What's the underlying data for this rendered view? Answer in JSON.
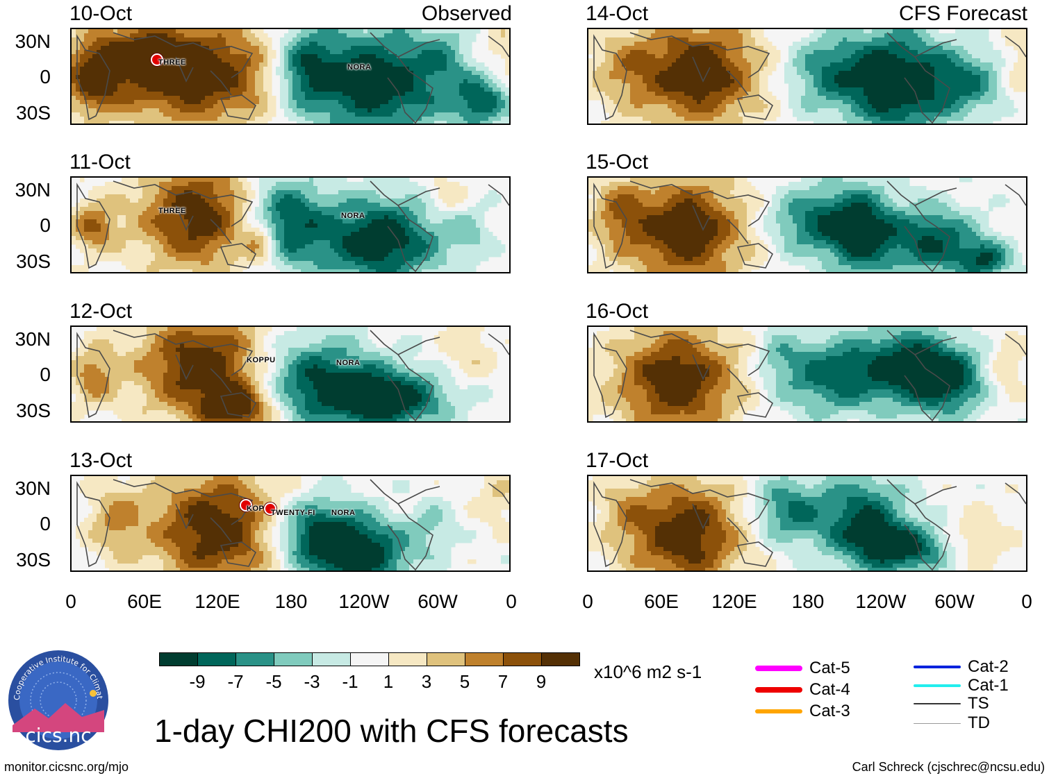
{
  "title": "1-day CHI200 with CFS forecasts",
  "observed_label": "Observed",
  "forecast_label": "CFS Forecast",
  "panels": [
    {
      "date": "10-Oct",
      "storms": [
        {
          "name": "THREE",
          "marker": true
        },
        {
          "name": "NORA",
          "marker": false
        }
      ]
    },
    {
      "date": "11-Oct",
      "storms": [
        {
          "name": "THREE",
          "marker": false
        },
        {
          "name": "NORA",
          "marker": false
        }
      ]
    },
    {
      "date": "12-Oct",
      "storms": [
        {
          "name": "KOPPU",
          "marker": false
        },
        {
          "name": "NORA",
          "marker": false
        }
      ]
    },
    {
      "date": "13-Oct",
      "storms": [
        {
          "name": "KOPPU",
          "marker": true
        },
        {
          "name": "TWENTY-FI",
          "marker": true
        },
        {
          "name": "NORA",
          "marker": false
        }
      ]
    },
    {
      "date": "14-Oct",
      "storms": []
    },
    {
      "date": "15-Oct",
      "storms": []
    },
    {
      "date": "16-Oct",
      "storms": []
    },
    {
      "date": "17-Oct",
      "storms": []
    }
  ],
  "lat_labels": [
    "30N",
    "0",
    "30S"
  ],
  "lon_labels": [
    "0",
    "60E",
    "120E",
    "180",
    "120W",
    "60W",
    "0"
  ],
  "colorbar": {
    "colors": [
      "#003d30",
      "#00665a",
      "#2a9287",
      "#80cbbd",
      "#c7eae4",
      "#f5f5f5",
      "#f6e8c3",
      "#dfc27d",
      "#bf812d",
      "#8c510a",
      "#543005"
    ],
    "labels": [
      "-9",
      "-7",
      "-5",
      "-3",
      "-1",
      "1",
      "3",
      "5",
      "7",
      "9"
    ],
    "units": "x10^6 m2 s-1"
  },
  "legend": [
    {
      "label": "Cat-5",
      "color": "#ff00ff"
    },
    {
      "label": "Cat-4",
      "color": "#ee0000"
    },
    {
      "label": "Cat-3",
      "color": "#ffa500"
    },
    {
      "label": "Cat-2",
      "color": "#0022dd"
    },
    {
      "label": "Cat-1",
      "color": "#22eeee"
    },
    {
      "label": "TS",
      "color": "#333333"
    },
    {
      "label": "TD",
      "color": "#999999"
    }
  ],
  "logo_text": "cics.nc",
  "logo_ring_text": "Cooperative Institute for Climate and Satellites",
  "footer_left": "monitor.cicsnc.org/mjo",
  "footer_right": "Carl Schreck (cjschrec@ncsu.edu)"
}
